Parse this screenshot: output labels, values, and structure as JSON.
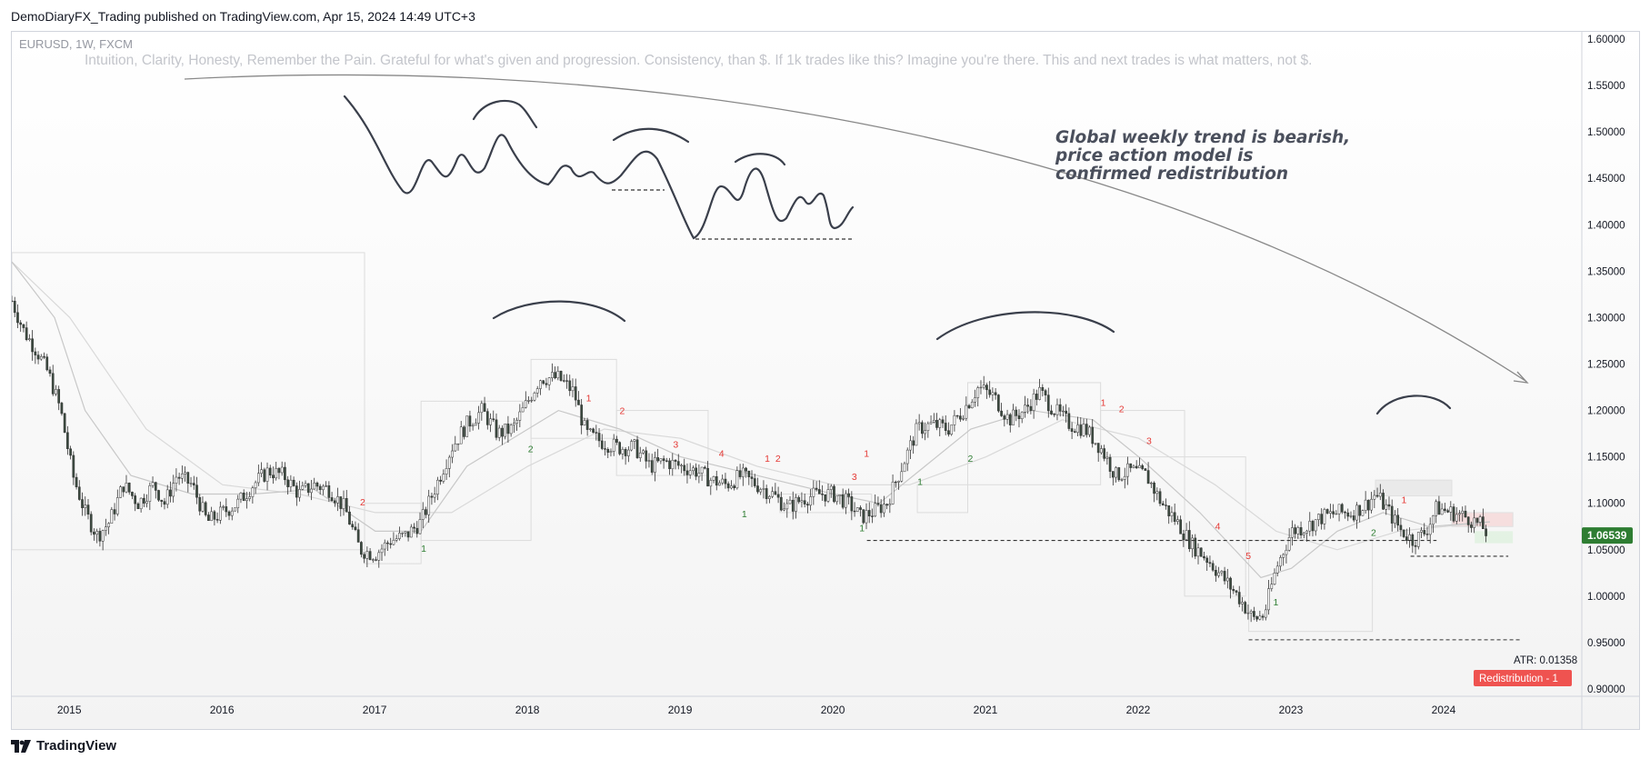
{
  "header": {
    "published": "DemoDiaryFX_Trading published on TradingView.com, Apr 15, 2024 14:49 UTC+3"
  },
  "footer": {
    "brand": "TradingView"
  },
  "colors": {
    "candle": "#3b4a3f",
    "up": "#2e7d32",
    "down": "#e53935",
    "price_tag": "#2e7d32",
    "badge": "#ef5350",
    "ma1": "#c8c8c8",
    "ma2": "#d9d9d9"
  },
  "chart_data": {
    "type": "candlestick",
    "symbol_line": "EURUSD, 1W, FXCM",
    "motto": "Intuition, Clarity, Honesty, Remember the Pain. Grateful for what's given and progression. Consistency, than $. If 1k trades like this? Imagine you're there. This and next trades is what matters, not $.",
    "note_lines": [
      "Global weekly trend is bearish,",
      "price action model is",
      "confirmed redistribution"
    ],
    "x_ticks": [
      {
        "label": "2015",
        "year": 2015.0
      },
      {
        "label": "2016",
        "year": 2016.0
      },
      {
        "label": "2017",
        "year": 2017.0
      },
      {
        "label": "2018",
        "year": 2018.0
      },
      {
        "label": "2019",
        "year": 2019.0
      },
      {
        "label": "2020",
        "year": 2020.0
      },
      {
        "label": "2021",
        "year": 2021.0
      },
      {
        "label": "2022",
        "year": 2022.0
      },
      {
        "label": "2023",
        "year": 2023.0
      },
      {
        "label": "2024",
        "year": 2024.0
      }
    ],
    "y_ticks": [
      "1.60000",
      "1.55000",
      "1.50000",
      "1.45000",
      "1.40000",
      "1.35000",
      "1.30000",
      "1.25000",
      "1.20000",
      "1.15000",
      "1.10000",
      "1.05000",
      "1.00000",
      "0.95000",
      "0.90000"
    ],
    "y_range": [
      0.9,
      1.6
    ],
    "x_range": [
      2014.62,
      2024.83
    ],
    "last_price": "1.06539",
    "atr_label": "ATR: 0.01358",
    "badge": "Redistribution - 1",
    "price_path": [
      [
        2014.62,
        1.318
      ],
      [
        2014.7,
        1.285
      ],
      [
        2014.78,
        1.265
      ],
      [
        2014.86,
        1.24
      ],
      [
        2014.94,
        1.2
      ],
      [
        2015.02,
        1.13
      ],
      [
        2015.1,
        1.09
      ],
      [
        2015.18,
        1.065
      ],
      [
        2015.26,
        1.08
      ],
      [
        2015.35,
        1.12
      ],
      [
        2015.45,
        1.1
      ],
      [
        2015.55,
        1.12
      ],
      [
        2015.62,
        1.1
      ],
      [
        2015.7,
        1.13
      ],
      [
        2015.8,
        1.12
      ],
      [
        2015.9,
        1.08
      ],
      [
        2016.0,
        1.09
      ],
      [
        2016.1,
        1.1
      ],
      [
        2016.2,
        1.12
      ],
      [
        2016.3,
        1.135
      ],
      [
        2016.4,
        1.13
      ],
      [
        2016.5,
        1.11
      ],
      [
        2016.6,
        1.12
      ],
      [
        2016.7,
        1.115
      ],
      [
        2016.8,
        1.095
      ],
      [
        2016.9,
        1.05
      ],
      [
        2017.0,
        1.045
      ],
      [
        2017.1,
        1.06
      ],
      [
        2017.2,
        1.065
      ],
      [
        2017.3,
        1.08
      ],
      [
        2017.4,
        1.12
      ],
      [
        2017.5,
        1.16
      ],
      [
        2017.6,
        1.185
      ],
      [
        2017.7,
        1.2
      ],
      [
        2017.8,
        1.175
      ],
      [
        2017.9,
        1.18
      ],
      [
        2018.0,
        1.21
      ],
      [
        2018.08,
        1.235
      ],
      [
        2018.2,
        1.235
      ],
      [
        2018.3,
        1.22
      ],
      [
        2018.38,
        1.175
      ],
      [
        2018.5,
        1.165
      ],
      [
        2018.6,
        1.16
      ],
      [
        2018.7,
        1.16
      ],
      [
        2018.8,
        1.14
      ],
      [
        2018.9,
        1.145
      ],
      [
        2019.0,
        1.14
      ],
      [
        2019.1,
        1.135
      ],
      [
        2019.2,
        1.125
      ],
      [
        2019.3,
        1.12
      ],
      [
        2019.4,
        1.13
      ],
      [
        2019.5,
        1.12
      ],
      [
        2019.6,
        1.11
      ],
      [
        2019.7,
        1.095
      ],
      [
        2019.8,
        1.105
      ],
      [
        2019.9,
        1.11
      ],
      [
        2020.0,
        1.11
      ],
      [
        2020.1,
        1.1
      ],
      [
        2020.18,
        1.085
      ],
      [
        2020.25,
        1.09
      ],
      [
        2020.35,
        1.1
      ],
      [
        2020.45,
        1.14
      ],
      [
        2020.55,
        1.18
      ],
      [
        2020.65,
        1.185
      ],
      [
        2020.75,
        1.18
      ],
      [
        2020.85,
        1.2
      ],
      [
        2020.95,
        1.225
      ],
      [
        2021.05,
        1.215
      ],
      [
        2021.15,
        1.19
      ],
      [
        2021.25,
        1.2
      ],
      [
        2021.35,
        1.22
      ],
      [
        2021.45,
        1.2
      ],
      [
        2021.55,
        1.185
      ],
      [
        2021.65,
        1.18
      ],
      [
        2021.75,
        1.16
      ],
      [
        2021.85,
        1.13
      ],
      [
        2021.95,
        1.135
      ],
      [
        2022.05,
        1.13
      ],
      [
        2022.15,
        1.1
      ],
      [
        2022.25,
        1.08
      ],
      [
        2022.35,
        1.055
      ],
      [
        2022.45,
        1.04
      ],
      [
        2022.55,
        1.02
      ],
      [
        2022.65,
        1.0
      ],
      [
        2022.75,
        0.975
      ],
      [
        2022.82,
        0.98
      ],
      [
        2022.9,
        1.03
      ],
      [
        2023.0,
        1.07
      ],
      [
        2023.1,
        1.075
      ],
      [
        2023.2,
        1.085
      ],
      [
        2023.3,
        1.09
      ],
      [
        2023.4,
        1.09
      ],
      [
        2023.5,
        1.1
      ],
      [
        2023.55,
        1.11
      ],
      [
        2023.62,
        1.095
      ],
      [
        2023.72,
        1.07
      ],
      [
        2023.8,
        1.06
      ],
      [
        2023.88,
        1.07
      ],
      [
        2023.95,
        1.095
      ],
      [
        2024.05,
        1.09
      ],
      [
        2024.15,
        1.085
      ],
      [
        2024.25,
        1.075
      ],
      [
        2024.29,
        1.065
      ]
    ],
    "ma_fast": [
      [
        2014.62,
        1.36
      ],
      [
        2014.9,
        1.3
      ],
      [
        2015.1,
        1.2
      ],
      [
        2015.4,
        1.13
      ],
      [
        2015.8,
        1.11
      ],
      [
        2016.2,
        1.11
      ],
      [
        2016.6,
        1.115
      ],
      [
        2017.0,
        1.07
      ],
      [
        2017.3,
        1.07
      ],
      [
        2017.6,
        1.14
      ],
      [
        2017.9,
        1.17
      ],
      [
        2018.2,
        1.2
      ],
      [
        2018.6,
        1.18
      ],
      [
        2019.0,
        1.15
      ],
      [
        2019.5,
        1.13
      ],
      [
        2020.0,
        1.11
      ],
      [
        2020.3,
        1.1
      ],
      [
        2020.6,
        1.14
      ],
      [
        2020.9,
        1.18
      ],
      [
        2021.3,
        1.2
      ],
      [
        2021.7,
        1.19
      ],
      [
        2022.0,
        1.15
      ],
      [
        2022.4,
        1.09
      ],
      [
        2022.8,
        1.02
      ],
      [
        2023.0,
        1.03
      ],
      [
        2023.3,
        1.07
      ],
      [
        2023.6,
        1.09
      ],
      [
        2023.9,
        1.075
      ],
      [
        2024.3,
        1.08
      ]
    ],
    "ma_slow": [
      [
        2014.62,
        1.36
      ],
      [
        2015.0,
        1.3
      ],
      [
        2015.5,
        1.18
      ],
      [
        2016.0,
        1.12
      ],
      [
        2016.5,
        1.11
      ],
      [
        2017.0,
        1.09
      ],
      [
        2017.5,
        1.09
      ],
      [
        2018.0,
        1.14
      ],
      [
        2018.5,
        1.18
      ],
      [
        2019.0,
        1.17
      ],
      [
        2019.5,
        1.14
      ],
      [
        2020.0,
        1.12
      ],
      [
        2020.5,
        1.12
      ],
      [
        2021.0,
        1.15
      ],
      [
        2021.5,
        1.19
      ],
      [
        2022.0,
        1.17
      ],
      [
        2022.5,
        1.12
      ],
      [
        2022.9,
        1.07
      ],
      [
        2023.3,
        1.05
      ],
      [
        2023.7,
        1.07
      ],
      [
        2024.3,
        1.08
      ]
    ],
    "counters": [
      {
        "t": "2",
        "c": "red",
        "x": 2016.9,
        "y": 1.098
      },
      {
        "t": "1",
        "c": "green",
        "x": 2017.3,
        "y": 1.048
      },
      {
        "t": "2",
        "c": "green",
        "x": 2018.0,
        "y": 1.155
      },
      {
        "t": "1",
        "c": "red",
        "x": 2018.38,
        "y": 1.21
      },
      {
        "t": "2",
        "c": "red",
        "x": 2018.6,
        "y": 1.196
      },
      {
        "t": "3",
        "c": "red",
        "x": 2018.95,
        "y": 1.16
      },
      {
        "t": "4",
        "c": "red",
        "x": 2019.25,
        "y": 1.15
      },
      {
        "t": "1",
        "c": "red",
        "x": 2019.55,
        "y": 1.145
      },
      {
        "t": "2",
        "c": "red",
        "x": 2019.62,
        "y": 1.145
      },
      {
        "t": "1",
        "c": "green",
        "x": 2019.4,
        "y": 1.085
      },
      {
        "t": "3",
        "c": "red",
        "x": 2020.12,
        "y": 1.125
      },
      {
        "t": "1",
        "c": "red",
        "x": 2020.2,
        "y": 1.15
      },
      {
        "t": "1",
        "c": "green",
        "x": 2020.17,
        "y": 1.07
      },
      {
        "t": "1",
        "c": "green",
        "x": 2020.55,
        "y": 1.12
      },
      {
        "t": "2",
        "c": "green",
        "x": 2020.88,
        "y": 1.145
      },
      {
        "t": "1",
        "c": "red",
        "x": 2021.75,
        "y": 1.205
      },
      {
        "t": "2",
        "c": "red",
        "x": 2021.87,
        "y": 1.198
      },
      {
        "t": "3",
        "c": "red",
        "x": 2022.05,
        "y": 1.164
      },
      {
        "t": "4",
        "c": "red",
        "x": 2022.5,
        "y": 1.072
      },
      {
        "t": "5",
        "c": "red",
        "x": 2022.7,
        "y": 1.04
      },
      {
        "t": "1",
        "c": "green",
        "x": 2022.88,
        "y": 0.99
      },
      {
        "t": "2",
        "c": "green",
        "x": 2023.52,
        "y": 1.065
      },
      {
        "t": "1",
        "c": "red",
        "x": 2023.72,
        "y": 1.1
      }
    ],
    "dashed_levels": [
      {
        "x1": 2020.22,
        "x2": 2023.95,
        "y": 1.06
      },
      {
        "x1": 2023.78,
        "x2": 2024.42,
        "y": 1.043
      },
      {
        "x1": 2022.72,
        "x2": 2024.5,
        "y": 0.953
      }
    ]
  }
}
